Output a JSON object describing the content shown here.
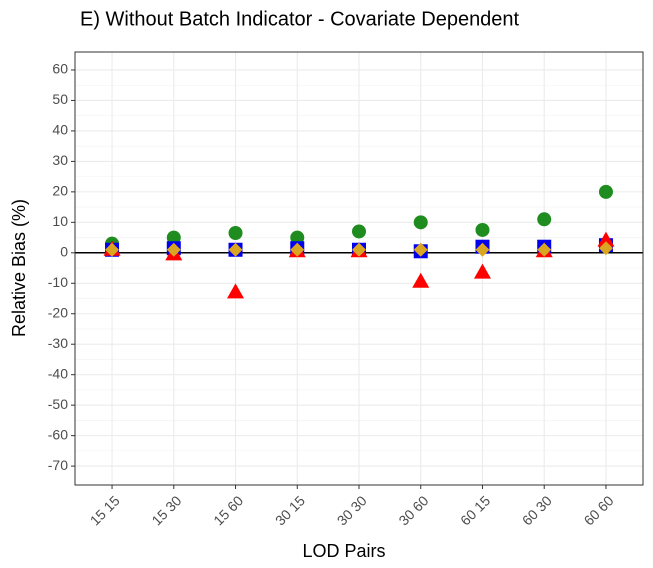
{
  "chart_data": {
    "type": "scatter",
    "title": "E)   Without Batch Indicator - Covariate Dependent",
    "x_label": "LOD Pairs",
    "y_label": "Relative Bias (%)",
    "categories": [
      "15 15",
      "15 30",
      "15 60",
      "30 15",
      "30 30",
      "30 60",
      "60 15",
      "60 30",
      "60 60"
    ],
    "series": [
      {
        "color": "#1e8c1e",
        "marker": "circle",
        "values": [
          3,
          5,
          6.5,
          5,
          7,
          10,
          7.5,
          11,
          20
        ]
      },
      {
        "color": "#0000ee",
        "marker": "square",
        "values": [
          1,
          1.5,
          1,
          1.5,
          1,
          0.5,
          2,
          2,
          2.5
        ]
      },
      {
        "color": "#ff0000",
        "marker": "triangle",
        "values": [
          1,
          -0.5,
          -13,
          0.5,
          0.5,
          -9.5,
          -6.5,
          0.5,
          4
        ]
      },
      {
        "color": "#daa520",
        "marker": "diamond",
        "values": [
          1,
          1,
          1,
          1,
          1,
          1,
          1,
          1,
          1.5
        ]
      }
    ],
    "ylim": [
      -76.2,
      65.9
    ],
    "yticks": [
      60,
      50,
      40,
      30,
      20,
      10,
      0,
      -10,
      -20,
      -30,
      -40,
      -50,
      -60,
      -70
    ],
    "reference_line": 0,
    "grid": true
  }
}
